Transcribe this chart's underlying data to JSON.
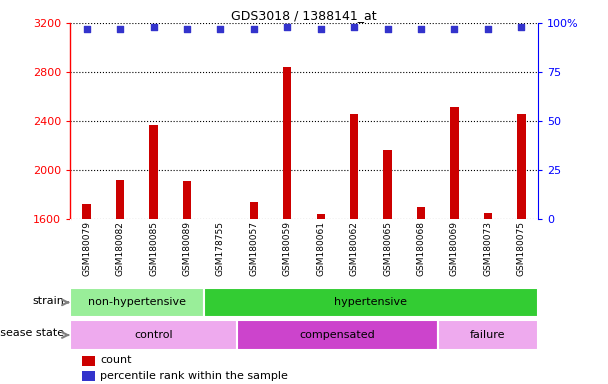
{
  "title": "GDS3018 / 1388141_at",
  "samples": [
    "GSM180079",
    "GSM180082",
    "GSM180085",
    "GSM180089",
    "GSM178755",
    "GSM180057",
    "GSM180059",
    "GSM180061",
    "GSM180062",
    "GSM180065",
    "GSM180068",
    "GSM180069",
    "GSM180073",
    "GSM180075"
  ],
  "counts": [
    1720,
    1920,
    2370,
    1910,
    1590,
    1740,
    2840,
    1640,
    2460,
    2160,
    1700,
    2510,
    1650,
    2460
  ],
  "percentile_ranks": [
    97,
    97,
    98,
    97,
    97,
    97,
    98,
    97,
    98,
    97,
    97,
    97,
    97,
    98
  ],
  "ylim_left": [
    1600,
    3200
  ],
  "ylim_right": [
    0,
    100
  ],
  "yticks_left": [
    1600,
    2000,
    2400,
    2800,
    3200
  ],
  "yticks_right": [
    0,
    25,
    50,
    75,
    100
  ],
  "bar_color": "#cc0000",
  "dot_color": "#3333cc",
  "strain_groups": [
    {
      "label": "non-hypertensive",
      "start": 0,
      "end": 4,
      "color": "#99ee99"
    },
    {
      "label": "hypertensive",
      "start": 4,
      "end": 14,
      "color": "#33cc33"
    }
  ],
  "disease_groups": [
    {
      "label": "control",
      "start": 0,
      "end": 5,
      "color": "#eeaaee"
    },
    {
      "label": "compensated",
      "start": 5,
      "end": 11,
      "color": "#cc44cc"
    },
    {
      "label": "failure",
      "start": 11,
      "end": 14,
      "color": "#eeaaee"
    }
  ],
  "legend_count_label": "count",
  "legend_pct_label": "percentile rank within the sample",
  "strain_label": "strain",
  "disease_label": "disease state",
  "label_area_color": "#cccccc",
  "bar_width": 0.25
}
